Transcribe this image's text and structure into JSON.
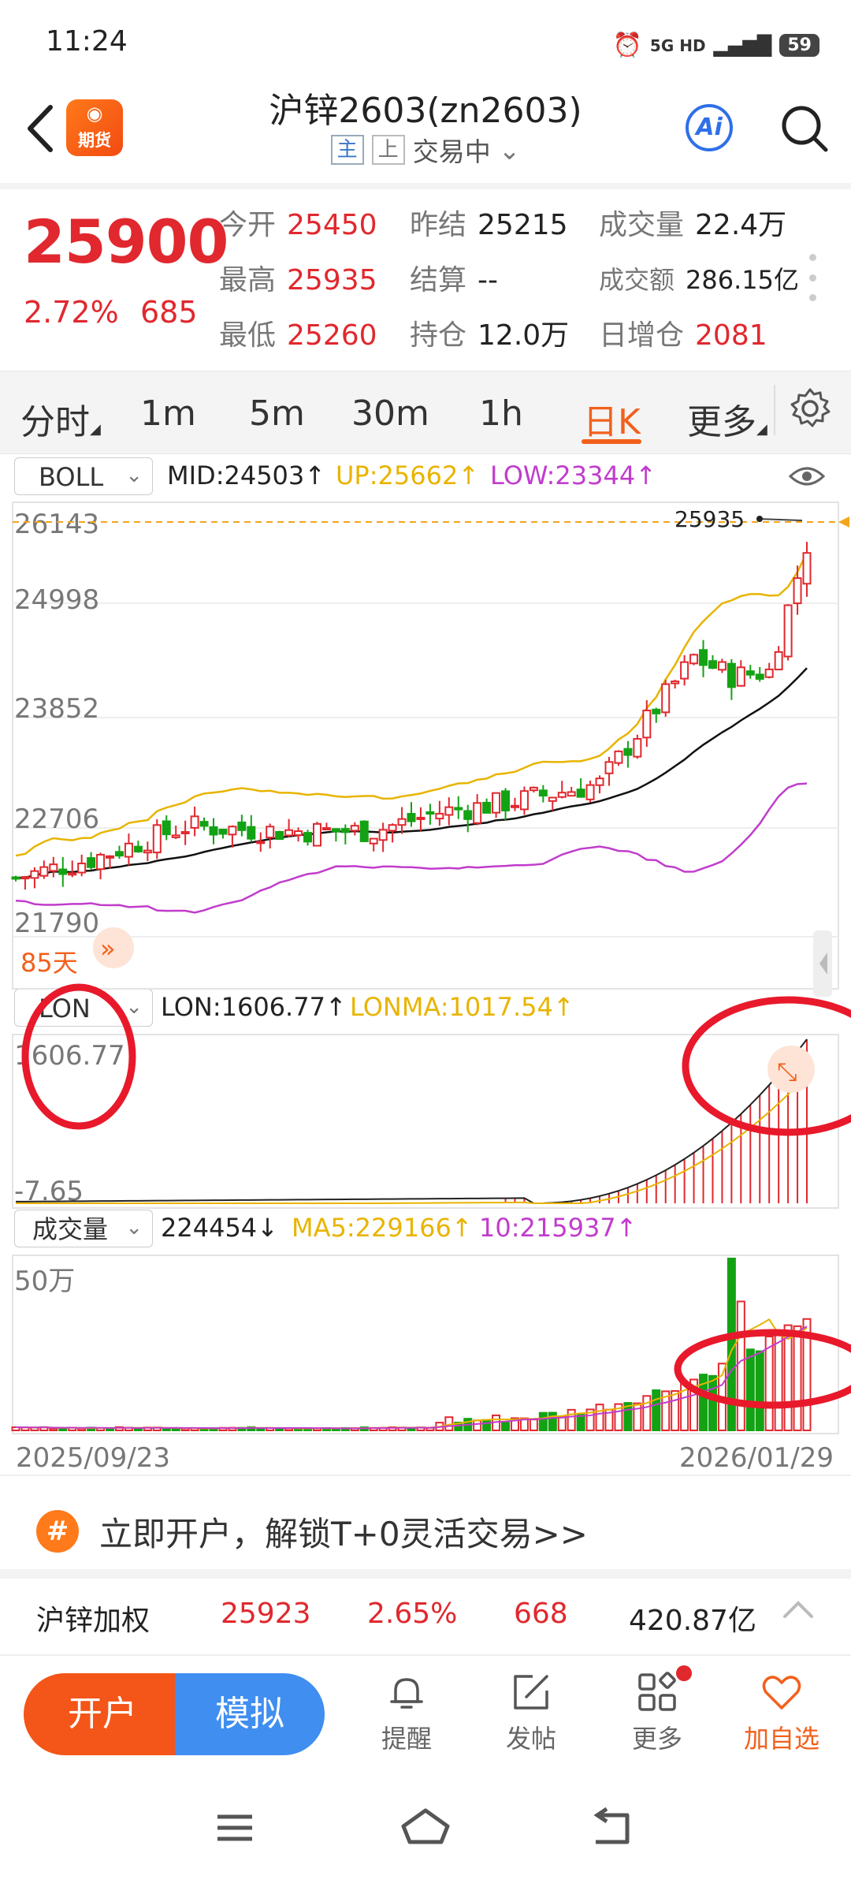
{
  "status_bar": {
    "time": "11:24",
    "signal": "5G HD",
    "battery": "59"
  },
  "header": {
    "logo_text": "期货",
    "title": "沪锌2603(zn2603)",
    "tag_main": "主",
    "tag_exchange": "上",
    "trade_status": "交易中",
    "ai_label": "Ai"
  },
  "quote": {
    "last": "25900",
    "change_pct": "2.72%",
    "change": "685",
    "fields": [
      {
        "label": "今开",
        "value": "25450",
        "color": "red"
      },
      {
        "label": "昨结",
        "value": "25215",
        "color": "black"
      },
      {
        "label": "成交量",
        "value": "22.4万",
        "color": "black"
      },
      {
        "label": "最高",
        "value": "25935",
        "color": "red"
      },
      {
        "label": "结算",
        "value": "--",
        "color": "black"
      },
      {
        "label": "成交额",
        "value": "286.15亿",
        "color": "black"
      },
      {
        "label": "最低",
        "value": "25260",
        "color": "red"
      },
      {
        "label": "持仓",
        "value": "12.0万",
        "color": "black"
      },
      {
        "label": "日增仓",
        "value": "2081",
        "color": "red"
      }
    ]
  },
  "tabs": [
    {
      "label": "分时"
    },
    {
      "label": "1m"
    },
    {
      "label": "5m"
    },
    {
      "label": "30m"
    },
    {
      "label": "1h"
    },
    {
      "label": "日K"
    },
    {
      "label": "更多"
    }
  ],
  "active_tab": "日K",
  "main_indicator": {
    "name": "BOLL",
    "mid": "MID:24503↑",
    "up": "UP:25662↑",
    "low": "LOW:23344↑",
    "axis": [
      "26143",
      "24998",
      "23852",
      "22706",
      "21790"
    ],
    "high_marker": "25935",
    "days_label": "85天"
  },
  "lon_indicator": {
    "name": "LON",
    "lon": "LON:1606.77↑",
    "lonma": "LONMA:1017.54↑",
    "axis_top": "1606.77",
    "axis_bottom": "-7.65"
  },
  "volume_indicator": {
    "name": "成交量",
    "value": "224454↓",
    "ma5": "MA5:229166↑",
    "ma10": "10:215937↑",
    "axis_top": "50万",
    "date_start": "2025/09/23",
    "date_end": "2026/01/29"
  },
  "promo": {
    "icon": "#",
    "text": "立即开户，解锁T+0灵活交易>>"
  },
  "weighted": {
    "name": "沪锌加权",
    "price": "25923",
    "pct": "2.65%",
    "change": "668",
    "amount": "420.87亿"
  },
  "actions": {
    "open_account": "开户",
    "simulate": "模拟"
  },
  "bottom_nav": [
    {
      "label": "提醒",
      "icon": "bell-icon"
    },
    {
      "label": "发帖",
      "icon": "edit-icon"
    },
    {
      "label": "更多",
      "icon": "grid-icon"
    },
    {
      "label": "加自选",
      "icon": "heart-icon"
    }
  ],
  "colors": {
    "up": "#e0282e",
    "down": "#13a214",
    "accent": "#f2601c",
    "mid_line": "#111111",
    "up_band": "#e8b400",
    "low_band": "#c13ccc"
  }
}
